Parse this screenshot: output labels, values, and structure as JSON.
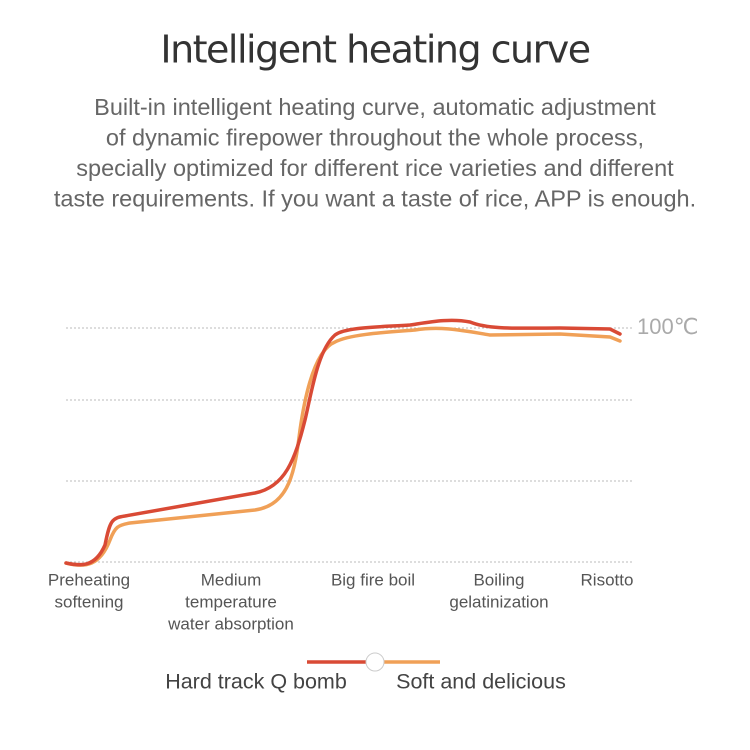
{
  "title": "Intelligent heating curve",
  "description": [
    "Built-in intelligent heating curve, automatic adjustment",
    "of dynamic firepower throughout the whole process,",
    "specially optimized for different rice varieties and different",
    "taste requirements. If you want a taste of rice, APP is enough."
  ],
  "diagram": {
    "top_label": "100℃",
    "stages": [
      [
        "Preheating",
        "softening"
      ],
      [
        "Medium",
        "temperature",
        "water absorption"
      ],
      [
        "Big fire boil"
      ],
      [
        "Boiling",
        "gelatinization"
      ],
      [
        "Risotto"
      ]
    ],
    "legend": [
      "Hard track Q bomb",
      "Soft and delicious"
    ]
  }
}
